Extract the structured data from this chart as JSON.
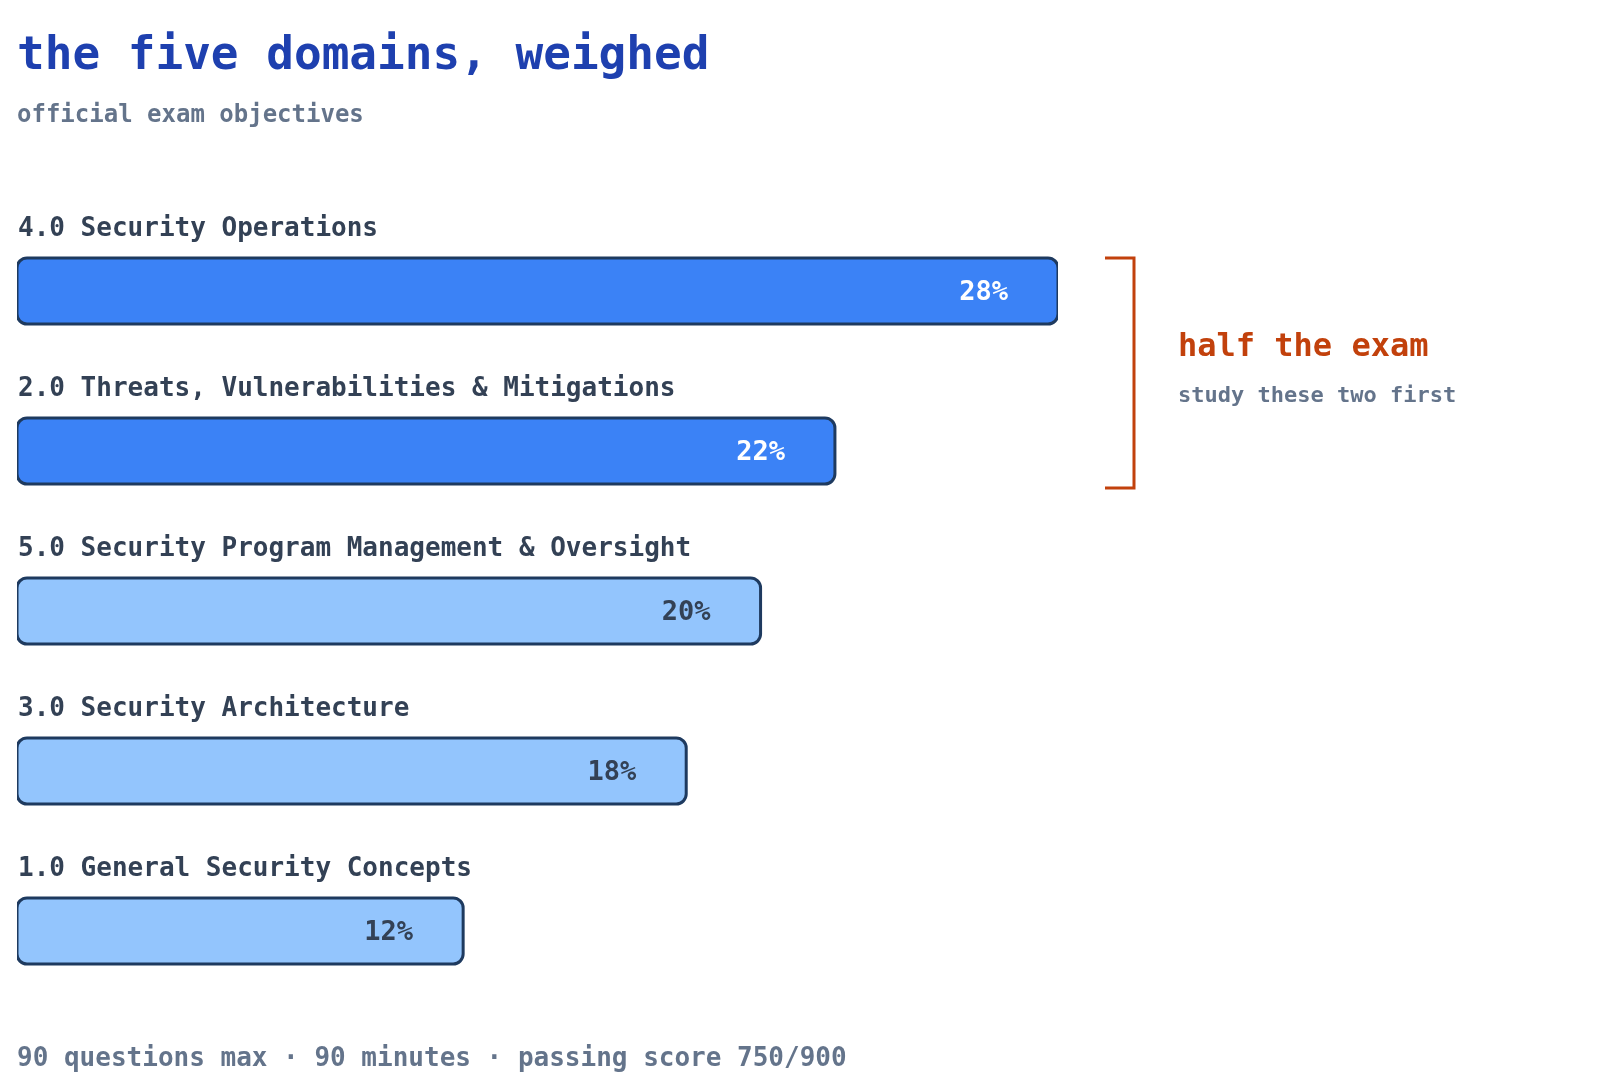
{
  "chart_data": {
    "type": "bar",
    "orientation": "horizontal",
    "title": "the five domains, weighed",
    "subtitle": "official exam objectives",
    "categories": [
      "4.0 Security Operations",
      "2.0 Threats, Vulnerabilities & Mitigations",
      "5.0 Security Program Management & Oversight",
      "3.0 Security Architecture",
      "1.0 General Security Concepts"
    ],
    "values": [
      28,
      22,
      20,
      18,
      12
    ],
    "colors": [
      "#3b82f6",
      "#3b82f6",
      "#93c5fd",
      "#93c5fd",
      "#93c5fd"
    ],
    "value_labels": [
      "28%",
      "22%",
      "20%",
      "18%",
      "12%"
    ],
    "annotations": [
      {
        "text": "half the exam"
      },
      {
        "text": "study these two first"
      },
      {
        "text": "90 questions max · 90 minutes · passing score 750/900"
      }
    ]
  }
}
